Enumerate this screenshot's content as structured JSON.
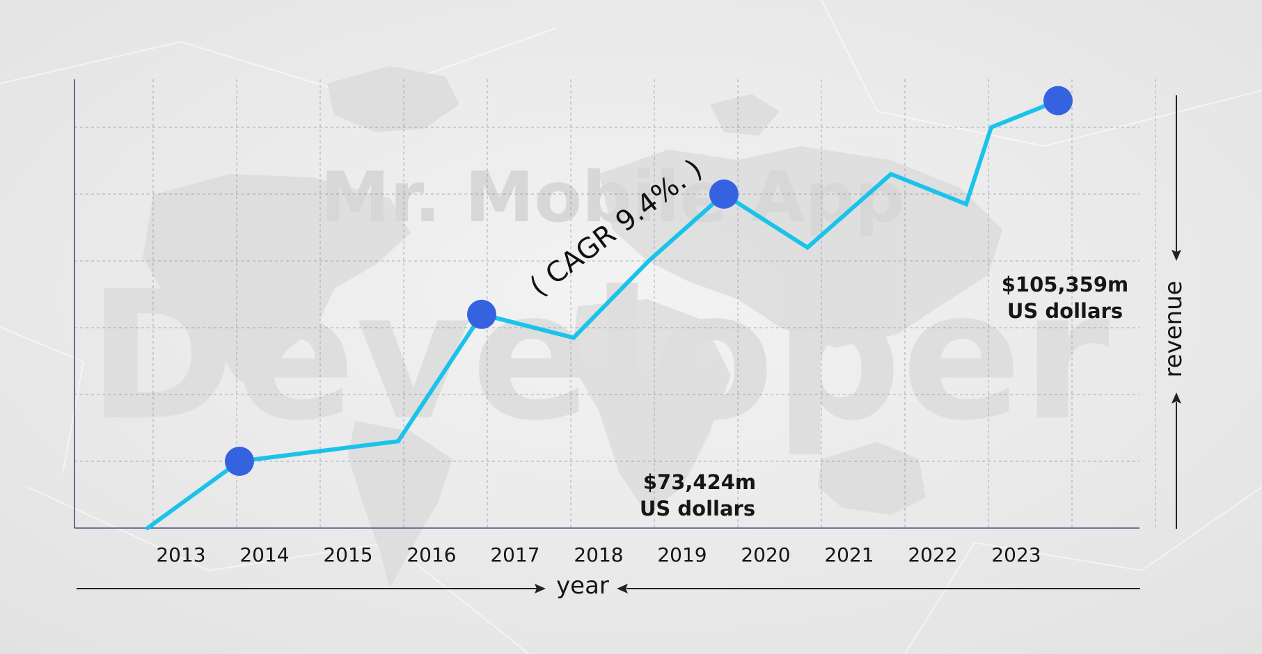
{
  "watermark": {
    "brand": "Mr. Mobile App",
    "word": "Developer"
  },
  "chart_data": {
    "type": "line",
    "x": [
      "2013",
      "2014",
      "2015",
      "2016",
      "2017",
      "2018",
      "2019",
      "2020",
      "2021",
      "2022",
      "2023"
    ],
    "xlabel": "year",
    "ylabel": "revenue",
    "title": "",
    "grid": true,
    "line_color": "#19c3ea",
    "marker_color": "#3563e0",
    "line_points": [
      {
        "x": 2012.6,
        "y": 0
      },
      {
        "x": 2013.7,
        "y": 1.0
      },
      {
        "x": 2015.6,
        "y": 1.3
      },
      {
        "x": 2016.6,
        "y": 3.2
      },
      {
        "x": 2017.7,
        "y": 2.85
      },
      {
        "x": 2018.6,
        "y": 4.0
      },
      {
        "x": 2019.5,
        "y": 5.0
      },
      {
        "x": 2020.5,
        "y": 4.2
      },
      {
        "x": 2021.5,
        "y": 5.3
      },
      {
        "x": 2022.4,
        "y": 4.85
      },
      {
        "x": 2022.7,
        "y": 6.0
      },
      {
        "x": 2023.5,
        "y": 6.4
      }
    ],
    "markers": [
      {
        "x": 2013.7,
        "y": 1.0
      },
      {
        "x": 2016.6,
        "y": 3.2
      },
      {
        "x": 2019.5,
        "y": 5.0
      },
      {
        "x": 2023.5,
        "y": 6.4
      }
    ],
    "annotations": {
      "cagr": "( CAGR 9.4%. )",
      "start_value": "$73,424m",
      "start_unit": "US dollars",
      "end_value": "$105,359m",
      "end_unit": "US dollars"
    }
  }
}
